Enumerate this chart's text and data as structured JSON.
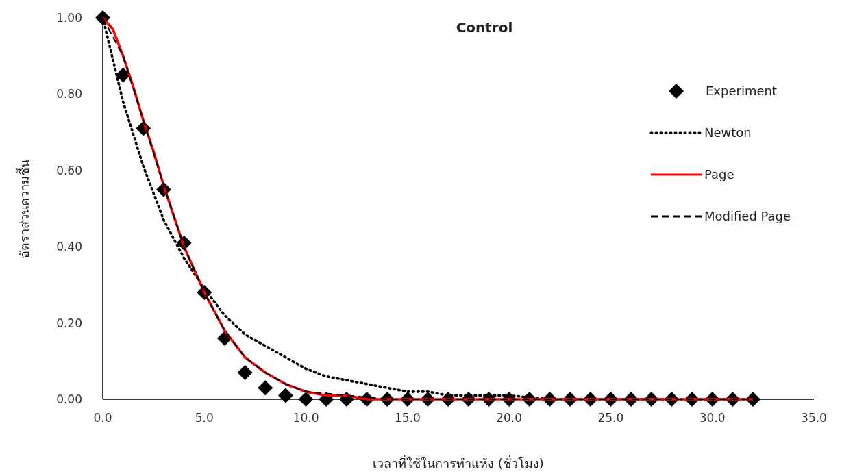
{
  "chart_data": {
    "type": "scatter",
    "title": "Control",
    "xlabel": "เวลาที่ใช้ในการทำแห้ง (ชั่วโมง)",
    "ylabel": "อัตราส่วนความชื้น",
    "xlim": [
      0,
      35
    ],
    "ylim": [
      0,
      1
    ],
    "xticks": [
      {
        "value": 0,
        "label": "0.0"
      },
      {
        "value": 5,
        "label": "5.0"
      },
      {
        "value": 10,
        "label": "10.0"
      },
      {
        "value": 15,
        "label": "15.0"
      },
      {
        "value": 20,
        "label": "20.0"
      },
      {
        "value": 25,
        "label": "25.0"
      },
      {
        "value": 30,
        "label": "30.0"
      },
      {
        "value": 35,
        "label": "35.0"
      }
    ],
    "yticks": [
      {
        "value": 0,
        "label": "0.00"
      },
      {
        "value": 0.2,
        "label": "0.20"
      },
      {
        "value": 0.4,
        "label": "0.40"
      },
      {
        "value": 0.6,
        "label": "0.60"
      },
      {
        "value": 0.8,
        "label": "0.80"
      },
      {
        "value": 1,
        "label": "1.00"
      }
    ],
    "grid": false,
    "legend": "top right",
    "series": [
      {
        "name": "Experiment",
        "marker": "diamond",
        "color": "#000000",
        "x": [
          0,
          1,
          2,
          3,
          4,
          5,
          6,
          7,
          8,
          9,
          10,
          11,
          12,
          13,
          14,
          15,
          16,
          17,
          18,
          19,
          20,
          21,
          22,
          23,
          24,
          25,
          26,
          27,
          28,
          29,
          30,
          31,
          32
        ],
        "values": [
          1.0,
          0.85,
          0.71,
          0.55,
          0.41,
          0.28,
          0.16,
          0.07,
          0.03,
          0.01,
          0.0,
          0.0,
          0.0,
          0.0,
          0.0,
          0.0,
          0.0,
          0.0,
          0.0,
          0.0,
          0.0,
          0.0,
          0.0,
          0.0,
          0.0,
          0.0,
          0.0,
          0.0,
          0.0,
          0.0,
          0.0,
          0.0,
          0.0
        ]
      },
      {
        "name": "Newton",
        "type": "line",
        "line_style": "dotted",
        "color": "#000000",
        "x": [
          0,
          1,
          2,
          3,
          4,
          5,
          6,
          7,
          8,
          9,
          10,
          11,
          12,
          13,
          14,
          15,
          16,
          17,
          18,
          19,
          20,
          22,
          25,
          28,
          32
        ],
        "values": [
          1.0,
          0.78,
          0.61,
          0.47,
          0.37,
          0.29,
          0.22,
          0.17,
          0.14,
          0.11,
          0.08,
          0.06,
          0.05,
          0.04,
          0.03,
          0.02,
          0.02,
          0.01,
          0.01,
          0.01,
          0.01,
          0.0,
          0.0,
          0.0,
          0.0
        ]
      },
      {
        "name": "Page",
        "type": "line",
        "line_style": "solid",
        "color": "#ff0000",
        "x": [
          0,
          0.5,
          1,
          1.5,
          2,
          2.5,
          3,
          3.5,
          4,
          5,
          6,
          7,
          8,
          9,
          10,
          11,
          12,
          13,
          14,
          15,
          16,
          20,
          25,
          32
        ],
        "values": [
          1.0,
          0.97,
          0.9,
          0.82,
          0.73,
          0.65,
          0.56,
          0.48,
          0.4,
          0.28,
          0.18,
          0.11,
          0.07,
          0.04,
          0.02,
          0.01,
          0.01,
          0.0,
          0.0,
          0.0,
          0.0,
          0.0,
          0.0,
          0.0
        ]
      },
      {
        "name": "Modified Page",
        "type": "line",
        "line_style": "dashed",
        "color": "#000000",
        "x": [
          0,
          1,
          2,
          3,
          4,
          5,
          6,
          7,
          8,
          9,
          10,
          12,
          14,
          17,
          22,
          27,
          32
        ],
        "values": [
          1.0,
          0.9,
          0.73,
          0.56,
          0.4,
          0.28,
          0.18,
          0.11,
          0.07,
          0.04,
          0.02,
          0.01,
          0.0,
          0.0,
          0.0,
          0.0,
          0.0
        ]
      }
    ]
  }
}
